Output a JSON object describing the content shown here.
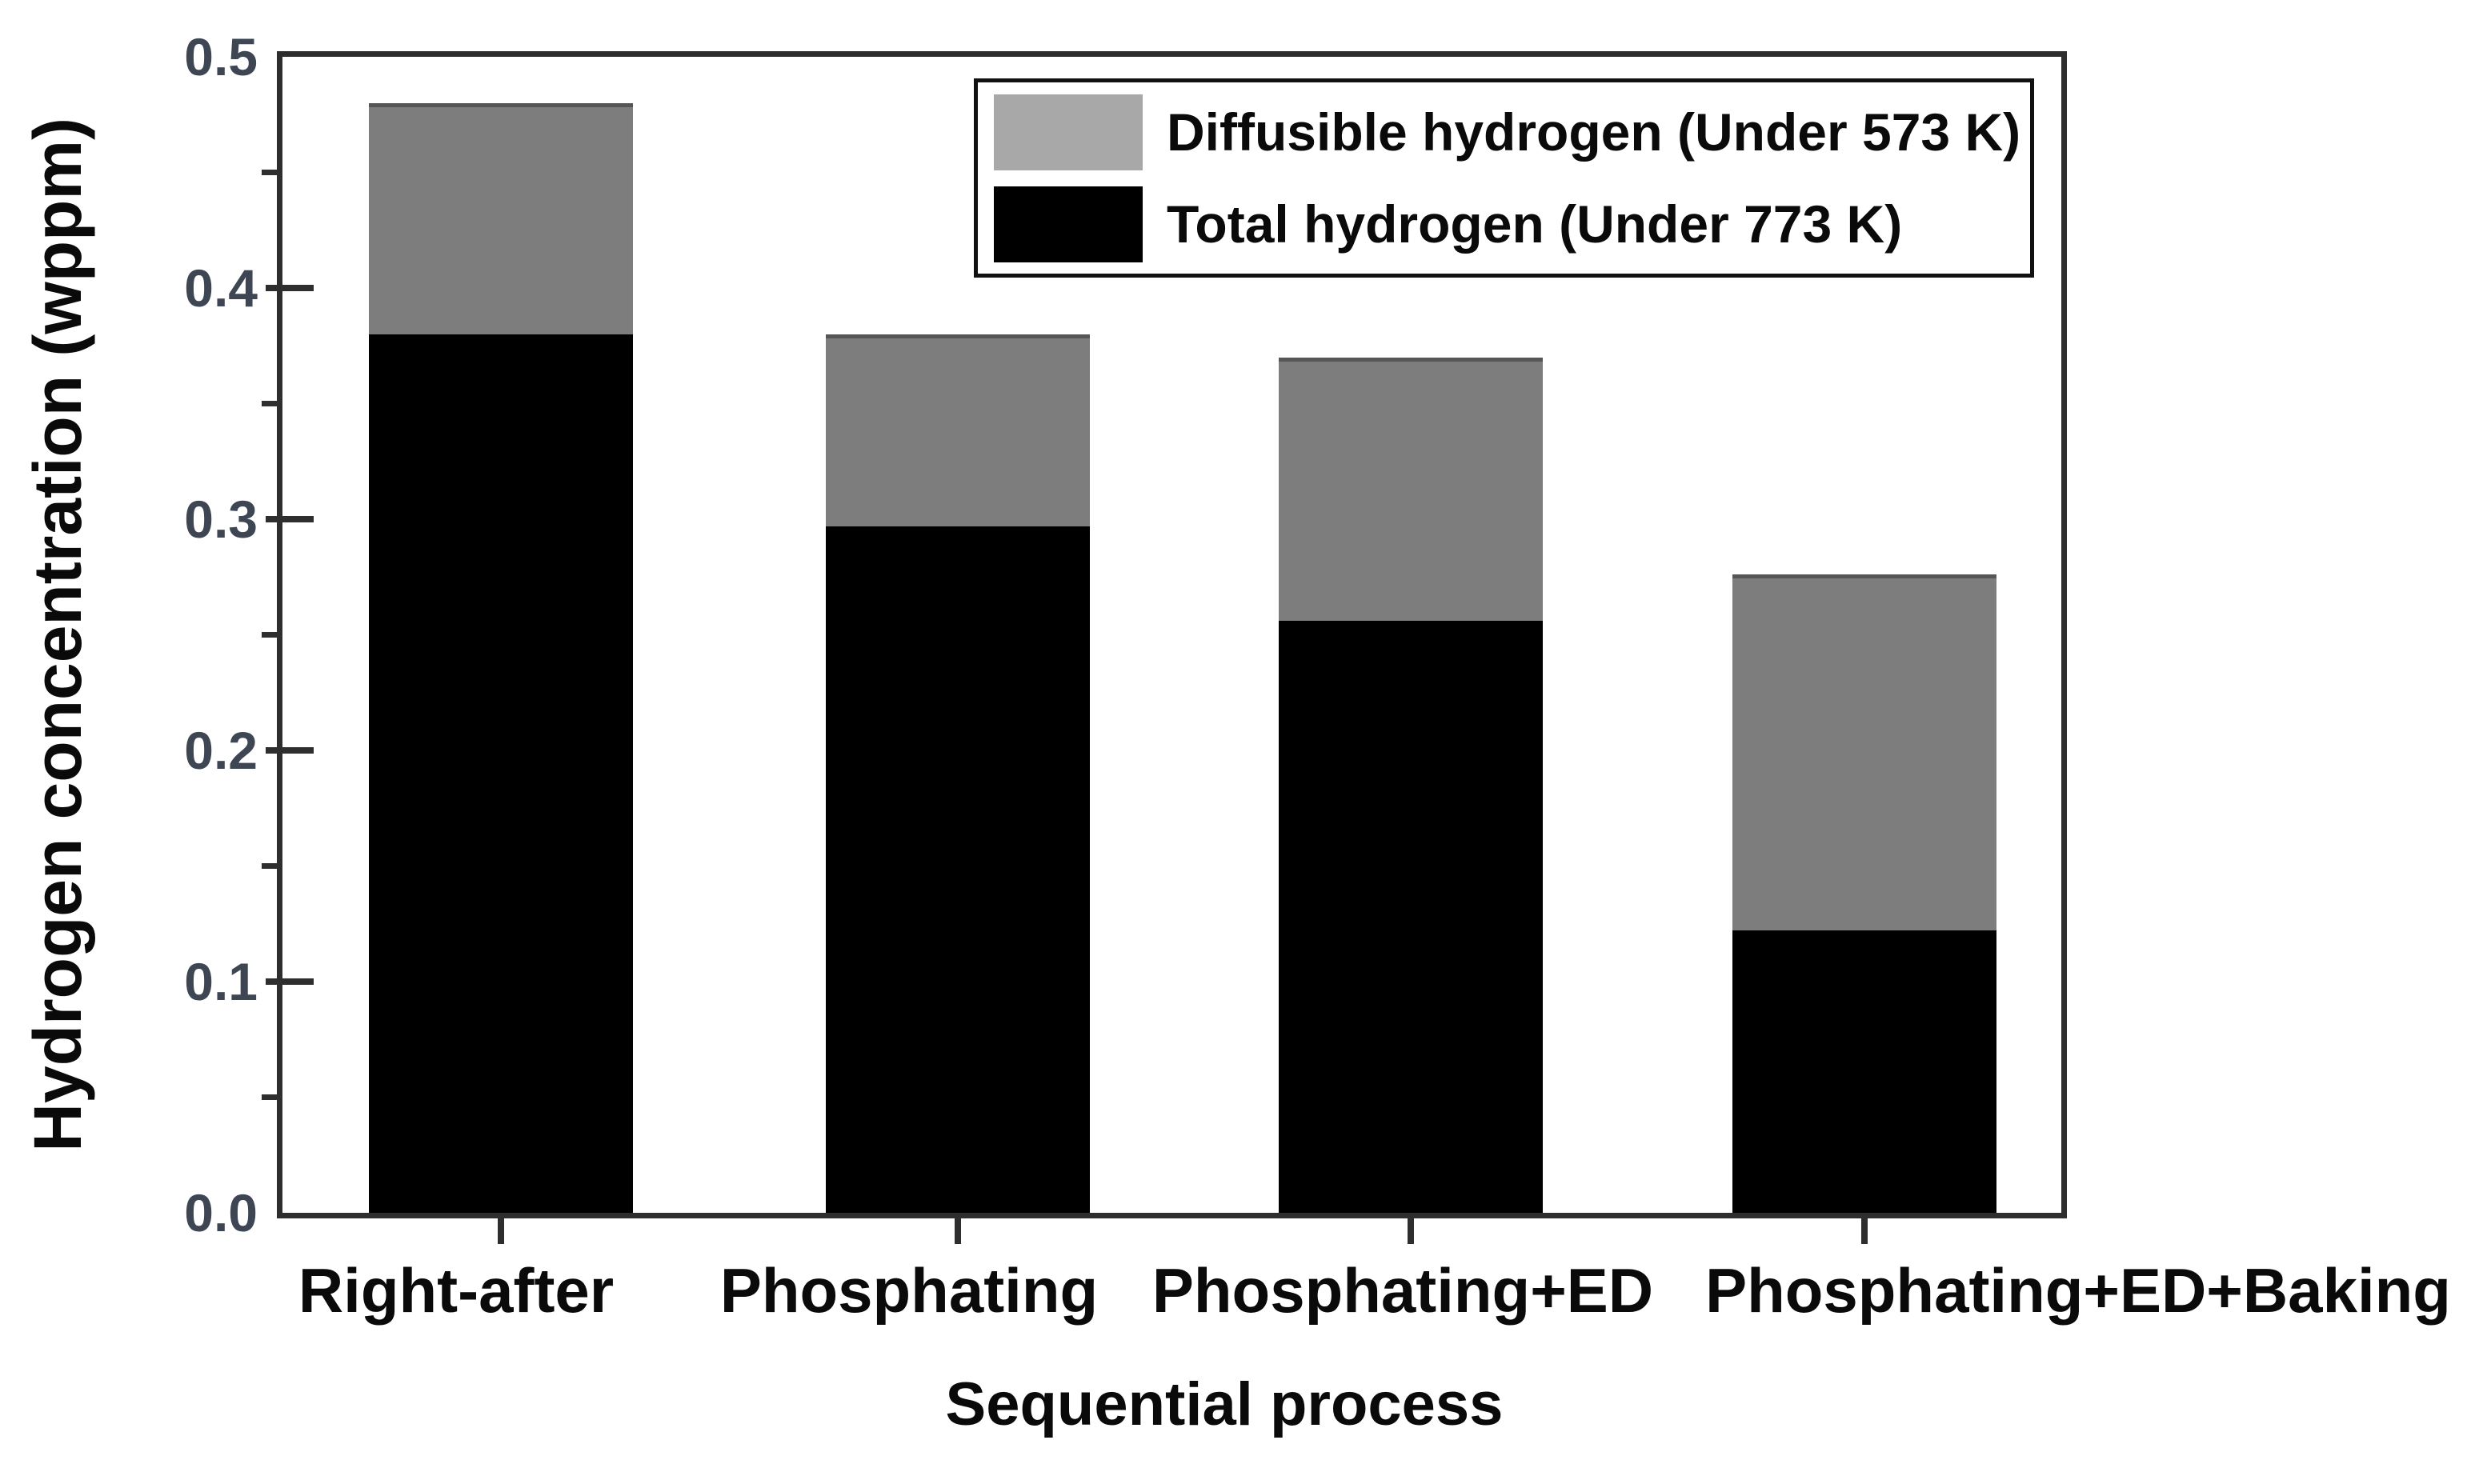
{
  "chart_data": {
    "type": "bar",
    "stacked": true,
    "title": "",
    "xlabel": "Sequential process",
    "ylabel": "Hydrogen concentration (wppm)",
    "categories": [
      "Right-after",
      "Phosphating",
      "Phosphating+ED",
      "Phosphating+ED+Baking"
    ],
    "series": [
      {
        "name": "Total hydrogen (Under 773 K)",
        "color": "#000000",
        "values": [
          0.38,
          0.297,
          0.256,
          0.122
        ]
      },
      {
        "name": "Diffusible hydrogen (Under 573 K)",
        "color": "#7d7d7d",
        "values": [
          0.1,
          0.083,
          0.114,
          0.154
        ]
      }
    ],
    "bar_top_totals": [
      0.48,
      0.38,
      0.37,
      0.276
    ],
    "ylim": [
      0.0,
      0.5
    ],
    "yticks": [
      "0.0",
      "0.1",
      "0.2",
      "0.3",
      "0.4",
      "0.5"
    ],
    "minor_tick_step": 0.05,
    "grid": false,
    "legend_position": "top-right"
  },
  "legend": {
    "items": [
      {
        "label": "Diffusible hydrogen (Under 573 K)",
        "swatch_color": "#a8a8a8"
      },
      {
        "label": "Total hydrogen (Under 773 K)",
        "swatch_color": "#000000"
      }
    ]
  },
  "colors": {
    "bar_black": "#000000",
    "bar_gray": "#7d7d7d",
    "gray_top_edge": "#565656",
    "axis": "#2e2e2e",
    "y_tick_label_color": "#3e4653",
    "text": "#0a0a0a",
    "background": "#ffffff"
  }
}
